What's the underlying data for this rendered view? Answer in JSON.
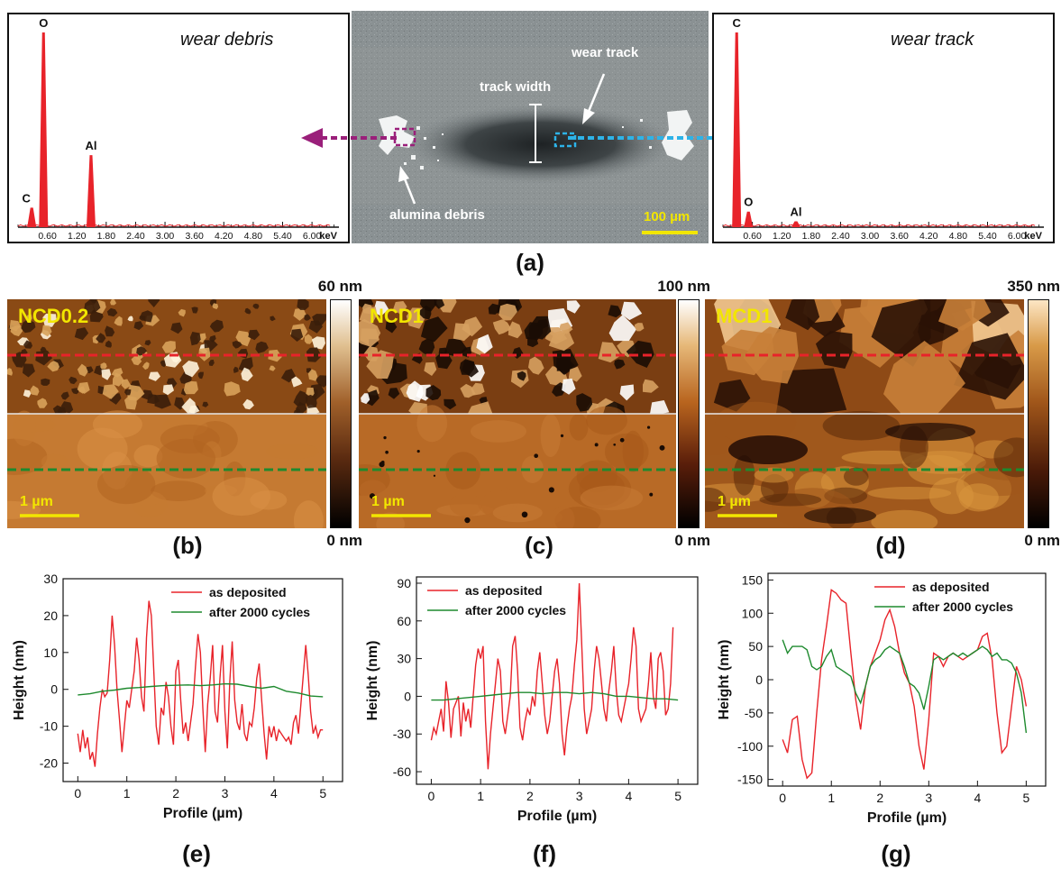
{
  "panel_a": {
    "label": "(a)",
    "eds_left": {
      "title": "wear debris",
      "unit": "keV",
      "ticks": [
        "0.60",
        "1.20",
        "1.80",
        "2.40",
        "3.00",
        "3.60",
        "4.20",
        "4.80",
        "5.40",
        "6.00"
      ],
      "peaks": [
        {
          "element": "C",
          "energy_kev": 0.28,
          "rel_height": 0.1
        },
        {
          "element": "O",
          "energy_kev": 0.52,
          "rel_height": 1.0
        },
        {
          "element": "Al",
          "energy_kev": 1.49,
          "rel_height": 0.37
        }
      ]
    },
    "eds_right": {
      "title": "wear track",
      "unit": "keV",
      "ticks": [
        "0.60",
        "1.20",
        "1.80",
        "2.40",
        "3.00",
        "3.60",
        "4.20",
        "4.80",
        "5.40",
        "6.00"
      ],
      "peaks": [
        {
          "element": "C",
          "energy_kev": 0.28,
          "rel_height": 1.0
        },
        {
          "element": "O",
          "energy_kev": 0.52,
          "rel_height": 0.08
        },
        {
          "element": "Al",
          "energy_kev": 1.49,
          "rel_height": 0.03
        }
      ]
    },
    "sem": {
      "wear_track_label": "wear track",
      "track_width_label": "track width",
      "debris_label": "alumina debris",
      "scale_bar": "100 µm"
    },
    "colors": {
      "debris_arrow": "#9a1f7a",
      "track_arrow": "#2db3e8",
      "spectrum": "#e8232a",
      "scale": "#f2e600"
    }
  },
  "afm": [
    {
      "label": "(b)",
      "sample": "NCD0.2",
      "max": "60 nm",
      "min": "0 nm",
      "scale": "1 µm"
    },
    {
      "label": "(c)",
      "sample": "NCD1",
      "max": "100 nm",
      "min": "0 nm",
      "scale": "1 µm"
    },
    {
      "label": "(d)",
      "sample": "MCD1",
      "max": "350 nm",
      "min": "0 nm",
      "scale": "1 µm"
    }
  ],
  "chart_data": [
    {
      "type": "line",
      "label": "(e)",
      "xlabel": "Profile (µm)",
      "ylabel": "Height (nm)",
      "xlim": [
        -0.3,
        5.4
      ],
      "ylim": [
        -25,
        30
      ],
      "xticks": [
        0,
        1,
        2,
        3,
        4,
        5
      ],
      "yticks": [
        -20,
        -10,
        0,
        10,
        20,
        30
      ],
      "legend": "top-right",
      "series": [
        {
          "name": "as deposited",
          "color": "#e8232a",
          "x": [
            0.0,
            0.05,
            0.1,
            0.15,
            0.2,
            0.25,
            0.3,
            0.35,
            0.4,
            0.45,
            0.5,
            0.55,
            0.6,
            0.65,
            0.7,
            0.75,
            0.8,
            0.85,
            0.9,
            0.95,
            1.0,
            1.05,
            1.1,
            1.15,
            1.2,
            1.25,
            1.3,
            1.35,
            1.4,
            1.45,
            1.5,
            1.55,
            1.6,
            1.65,
            1.7,
            1.75,
            1.8,
            1.85,
            1.9,
            1.95,
            2.0,
            2.05,
            2.1,
            2.15,
            2.2,
            2.25,
            2.3,
            2.35,
            2.4,
            2.45,
            2.5,
            2.55,
            2.6,
            2.65,
            2.7,
            2.75,
            2.8,
            2.85,
            2.9,
            2.95,
            3.0,
            3.05,
            3.1,
            3.15,
            3.2,
            3.25,
            3.3,
            3.35,
            3.4,
            3.45,
            3.5,
            3.55,
            3.6,
            3.65,
            3.7,
            3.75,
            3.8,
            3.85,
            3.9,
            3.95,
            4.0,
            4.05,
            4.1,
            4.15,
            4.2,
            4.25,
            4.3,
            4.35,
            4.4,
            4.45,
            4.5,
            4.55,
            4.6,
            4.65,
            4.7,
            4.75,
            4.8,
            4.85,
            4.9,
            4.95,
            5.0
          ],
          "y": [
            -12,
            -17,
            -11,
            -16,
            -13,
            -19,
            -17,
            -21,
            -12,
            -5,
            0,
            -2,
            -1,
            8,
            20,
            12,
            0,
            -8,
            -17,
            -10,
            -3,
            -5,
            0,
            5,
            14,
            8,
            -2,
            -6,
            14,
            24,
            20,
            5,
            -10,
            -15,
            -5,
            -7,
            2,
            -2,
            -10,
            -15,
            5,
            8,
            -3,
            -12,
            -9,
            -14,
            -9,
            -4,
            6,
            15,
            10,
            -5,
            -17,
            -4,
            3,
            12,
            -6,
            -9,
            3,
            12,
            -6,
            -16,
            2,
            13,
            -3,
            -9,
            -11,
            -4,
            -12,
            -14,
            -9,
            -10,
            -5,
            3,
            7,
            -3,
            -12,
            -19,
            -10,
            -13,
            -10,
            -14,
            -11,
            -12,
            -13,
            -14,
            -13,
            -15,
            -9,
            -7,
            -12,
            -4,
            4,
            12,
            4,
            -6,
            -12,
            -10,
            -13,
            -11,
            -11
          ]
        },
        {
          "name": "after 2000 cycles",
          "color": "#1e8a2e",
          "x": [
            0.0,
            0.25,
            0.5,
            0.75,
            1.0,
            1.25,
            1.5,
            1.75,
            2.0,
            2.25,
            2.5,
            2.75,
            3.0,
            3.25,
            3.5,
            3.75,
            4.0,
            4.25,
            4.5,
            4.75,
            5.0
          ],
          "y": [
            -1.5,
            -1.2,
            -0.5,
            -0.2,
            0.3,
            0.5,
            0.8,
            1.0,
            1.1,
            1.2,
            1.0,
            1.2,
            1.5,
            1.4,
            0.8,
            0.3,
            0.8,
            -0.5,
            -1.0,
            -1.8,
            -2.0
          ]
        }
      ]
    },
    {
      "type": "line",
      "label": "(f)",
      "xlabel": "Profile (µm)",
      "ylabel": "Height (nm)",
      "xlim": [
        -0.3,
        5.4
      ],
      "ylim": [
        -70,
        95
      ],
      "xticks": [
        0,
        1,
        2,
        3,
        4,
        5
      ],
      "yticks": [
        -60,
        -30,
        0,
        30,
        60,
        90
      ],
      "legend": "top-left",
      "series": [
        {
          "name": "as deposited",
          "color": "#e8232a",
          "x": [
            0.0,
            0.05,
            0.1,
            0.15,
            0.2,
            0.25,
            0.3,
            0.35,
            0.4,
            0.45,
            0.5,
            0.55,
            0.6,
            0.65,
            0.7,
            0.75,
            0.8,
            0.85,
            0.9,
            0.95,
            1.0,
            1.05,
            1.1,
            1.15,
            1.2,
            1.25,
            1.3,
            1.35,
            1.4,
            1.45,
            1.5,
            1.55,
            1.6,
            1.65,
            1.7,
            1.75,
            1.8,
            1.85,
            1.9,
            1.95,
            2.0,
            2.05,
            2.1,
            2.15,
            2.2,
            2.25,
            2.3,
            2.35,
            2.4,
            2.45,
            2.5,
            2.55,
            2.6,
            2.65,
            2.7,
            2.75,
            2.8,
            2.85,
            2.9,
            2.95,
            3.0,
            3.05,
            3.1,
            3.15,
            3.2,
            3.25,
            3.3,
            3.35,
            3.4,
            3.45,
            3.5,
            3.55,
            3.6,
            3.65,
            3.7,
            3.75,
            3.8,
            3.85,
            3.9,
            3.95,
            4.0,
            4.05,
            4.1,
            4.15,
            4.2,
            4.25,
            4.3,
            4.35,
            4.4,
            4.45,
            4.5,
            4.55,
            4.6,
            4.65,
            4.7,
            4.75,
            4.8,
            4.85,
            4.9
          ],
          "y": [
            -35,
            -25,
            -30,
            -20,
            -10,
            -28,
            12,
            -5,
            -33,
            -10,
            -5,
            0,
            -32,
            -5,
            -20,
            -10,
            -25,
            0,
            25,
            38,
            30,
            40,
            -20,
            -58,
            -30,
            -10,
            10,
            30,
            20,
            -20,
            -30,
            -15,
            0,
            40,
            48,
            20,
            -25,
            -35,
            -20,
            -10,
            -15,
            0,
            -8,
            20,
            35,
            10,
            -15,
            -30,
            -20,
            0,
            20,
            30,
            10,
            -30,
            -47,
            -25,
            -10,
            0,
            25,
            45,
            90,
            40,
            -10,
            -30,
            -20,
            -10,
            20,
            40,
            30,
            10,
            -10,
            -20,
            5,
            20,
            40,
            5,
            -15,
            -20,
            -10,
            0,
            10,
            30,
            55,
            40,
            -10,
            -20,
            -15,
            -10,
            10,
            35,
            0,
            -10,
            30,
            35,
            20,
            -15,
            -10,
            10,
            55
          ]
        },
        {
          "name": "after 2000 cycles",
          "color": "#1e8a2e",
          "x": [
            0.0,
            0.25,
            0.5,
            0.75,
            1.0,
            1.25,
            1.5,
            1.75,
            2.0,
            2.25,
            2.5,
            2.75,
            3.0,
            3.25,
            3.5,
            3.75,
            4.0,
            4.25,
            4.5,
            4.75,
            5.0
          ],
          "y": [
            -3,
            -3,
            -2,
            -1,
            0,
            1,
            2,
            3,
            3,
            2,
            3,
            3,
            2,
            3,
            2,
            0,
            0,
            -1,
            -2,
            -2,
            -3
          ]
        }
      ]
    },
    {
      "type": "line",
      "label": "(g)",
      "xlabel": "Profile (µm)",
      "ylabel": "Height (nm)",
      "xlim": [
        -0.3,
        5.4
      ],
      "ylim": [
        -160,
        160
      ],
      "xticks": [
        0,
        1,
        2,
        3,
        4,
        5
      ],
      "yticks": [
        -150,
        -100,
        -50,
        0,
        50,
        100,
        150
      ],
      "legend": "top-right",
      "series": [
        {
          "name": "as deposited",
          "color": "#e8232a",
          "x": [
            0.0,
            0.1,
            0.2,
            0.3,
            0.4,
            0.5,
            0.6,
            0.7,
            0.8,
            0.9,
            1.0,
            1.1,
            1.2,
            1.3,
            1.4,
            1.5,
            1.6,
            1.7,
            1.8,
            1.9,
            2.0,
            2.1,
            2.2,
            2.3,
            2.4,
            2.5,
            2.6,
            2.7,
            2.8,
            2.9,
            3.0,
            3.1,
            3.2,
            3.3,
            3.4,
            3.5,
            3.6,
            3.7,
            3.8,
            3.9,
            4.0,
            4.1,
            4.2,
            4.3,
            4.4,
            4.5,
            4.6,
            4.7,
            4.8,
            4.9,
            5.0
          ],
          "y": [
            -90,
            -110,
            -60,
            -55,
            -120,
            -148,
            -140,
            -50,
            30,
            80,
            135,
            130,
            120,
            115,
            40,
            -30,
            -75,
            -10,
            20,
            40,
            60,
            90,
            105,
            80,
            40,
            10,
            -5,
            -40,
            -100,
            -135,
            -60,
            40,
            35,
            20,
            35,
            40,
            35,
            30,
            35,
            40,
            45,
            65,
            70,
            30,
            -50,
            -110,
            -100,
            -40,
            20,
            0,
            -40
          ]
        },
        {
          "name": "after 2000 cycles",
          "color": "#1e8a2e",
          "x": [
            0.0,
            0.1,
            0.2,
            0.3,
            0.4,
            0.5,
            0.6,
            0.7,
            0.8,
            0.9,
            1.0,
            1.1,
            1.2,
            1.3,
            1.4,
            1.5,
            1.6,
            1.7,
            1.8,
            1.9,
            2.0,
            2.1,
            2.2,
            2.3,
            2.4,
            2.5,
            2.6,
            2.7,
            2.8,
            2.9,
            3.0,
            3.1,
            3.2,
            3.3,
            3.4,
            3.5,
            3.6,
            3.7,
            3.8,
            3.9,
            4.0,
            4.1,
            4.2,
            4.3,
            4.4,
            4.5,
            4.6,
            4.7,
            4.8,
            4.9,
            5.0
          ],
          "y": [
            60,
            40,
            50,
            50,
            50,
            45,
            20,
            15,
            20,
            35,
            45,
            20,
            15,
            10,
            5,
            -20,
            -35,
            -10,
            20,
            30,
            35,
            45,
            50,
            45,
            40,
            20,
            -5,
            -10,
            -20,
            -45,
            -10,
            30,
            35,
            30,
            35,
            40,
            35,
            40,
            35,
            40,
            45,
            50,
            45,
            35,
            40,
            30,
            30,
            25,
            10,
            -20,
            -80
          ]
        }
      ]
    }
  ]
}
